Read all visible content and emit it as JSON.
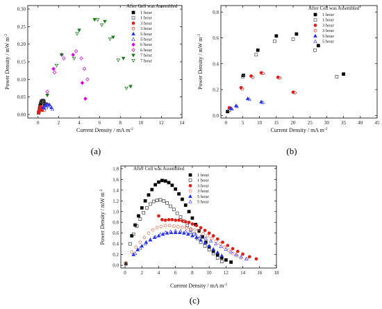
{
  "chart_data": [
    {
      "type": "scatter",
      "panel_label": "(a)",
      "xlabel": "Current Density / mA m",
      "xlabel_sup": "-2",
      "ylabel": "Power Density / mW m",
      "ylabel_sup": "-2",
      "xlim": [
        -1,
        14
      ],
      "ylim": [
        -0.01,
        0.31
      ],
      "xticks": [
        "0",
        "2",
        "4",
        "6",
        "8",
        "10",
        "12",
        "14"
      ],
      "yticks": [
        "0.00",
        "0.05",
        "0.10",
        "0.15",
        "0.20",
        "0.25",
        "0.30"
      ],
      "xtick_values": [
        0,
        2,
        4,
        6,
        8,
        10,
        12,
        14
      ],
      "ytick_values": [
        0,
        0.05,
        0.1,
        0.15,
        0.2,
        0.25,
        0.3
      ],
      "legend_title": "After Cell was Assembled",
      "legend_position": "top-right",
      "series": [
        {
          "name": "1 hour",
          "marker": "square",
          "filled": true,
          "color": "#000000",
          "x": [
            0.05,
            0.1,
            0.15,
            0.2,
            0.25,
            0.3,
            0.35,
            0.45,
            0.55,
            0.65
          ],
          "y": [
            0.005,
            0.01,
            0.018,
            0.025,
            0.03,
            0.035,
            0.038,
            0.04,
            0.038,
            0.03
          ]
        },
        {
          "name": "1 hour",
          "marker": "square",
          "filled": false,
          "color": "#555555",
          "x": [
            0.1,
            0.2,
            0.3,
            0.4,
            0.5,
            0.6,
            0.7,
            0.8
          ],
          "y": [
            0.01,
            0.02,
            0.03,
            0.037,
            0.04,
            0.035,
            0.028,
            0.02
          ]
        },
        {
          "name": "3 hour",
          "marker": "circle",
          "filled": true,
          "color": "#e0201b",
          "x": [
            0.05,
            0.1,
            0.15,
            0.2,
            0.25,
            0.3,
            0.35,
            0.4
          ],
          "y": [
            0.005,
            0.01,
            0.015,
            0.02,
            0.022,
            0.02,
            0.017,
            0.012
          ]
        },
        {
          "name": "3 hour",
          "marker": "circle",
          "filled": false,
          "color": "#e0201b",
          "x": [
            0.1,
            0.2,
            0.3,
            0.4,
            0.5,
            0.6
          ],
          "y": [
            0.008,
            0.015,
            0.02,
            0.022,
            0.018,
            0.012
          ]
        },
        {
          "name": "5 hour",
          "marker": "triangle",
          "filled": true,
          "color": "#1f2ee0",
          "x": [
            0.5,
            0.7,
            0.9,
            1.1,
            1.3
          ],
          "y": [
            0.02,
            0.026,
            0.03,
            0.028,
            0.02
          ]
        },
        {
          "name": "5 hour",
          "marker": "triangle",
          "filled": false,
          "color": "#4d4dff",
          "x": [
            0.6,
            0.8,
            1.0,
            1.2,
            1.4
          ],
          "y": [
            0.018,
            0.024,
            0.027,
            0.024,
            0.015
          ]
        },
        {
          "name": "6 hour",
          "marker": "diamond",
          "filled": true,
          "color": "#e000e0",
          "x": [
            1.5,
            2.3,
            3.4,
            4.3,
            4.6
          ],
          "y": [
            0.13,
            0.17,
            0.17,
            0.09,
            0.045
          ]
        },
        {
          "name": "6 hour",
          "marker": "diamond",
          "filled": false,
          "color": "#e000e0",
          "x": [
            1.6,
            2.5,
            3.7,
            4.2,
            4.5,
            4.8,
            0.9
          ],
          "y": [
            0.12,
            0.16,
            0.18,
            0.16,
            0.13,
            0.1,
            0.065
          ]
        },
        {
          "name": "7 hour",
          "marker": "triangle-down",
          "filled": true,
          "color": "#1e7a1e",
          "x": [
            0.9,
            2.3,
            4.0,
            5.5,
            6.5,
            7.3,
            8.3,
            9.0
          ],
          "y": [
            0.055,
            0.17,
            0.24,
            0.27,
            0.265,
            0.22,
            0.16,
            0.08
          ]
        },
        {
          "name": "7 hour",
          "marker": "triangle-down",
          "filled": false,
          "color": "#1e7a1e",
          "x": [
            1.8,
            3.5,
            3.8,
            5.8,
            6.2,
            7.0,
            7.8,
            8.6
          ],
          "y": [
            0.14,
            0.16,
            0.23,
            0.27,
            0.255,
            0.215,
            0.155,
            0.075
          ]
        }
      ]
    },
    {
      "type": "scatter",
      "panel_label": "(b)",
      "xlabel": "Current Density / mA m",
      "xlabel_sup": "-2",
      "ylabel": "Power Density / mW m",
      "ylabel_sup": "-2",
      "xlim": [
        -1.5,
        45
      ],
      "ylim": [
        -0.02,
        0.85
      ],
      "xticks": [
        "0",
        "5",
        "10",
        "15",
        "20",
        "25",
        "30",
        "35",
        "40",
        "45"
      ],
      "yticks": [
        "0.0",
        "0.2",
        "0.4",
        "0.6",
        "0.8"
      ],
      "xtick_values": [
        0,
        5,
        10,
        15,
        20,
        25,
        30,
        35,
        40,
        45
      ],
      "ytick_values": [
        0,
        0.2,
        0.4,
        0.6,
        0.8
      ],
      "legend_title": "After Cell was Assembled",
      "legend_position": "top-right",
      "series": [
        {
          "name": "1 hour",
          "marker": "square",
          "filled": true,
          "color": "#000000",
          "x": [
            0.5,
            5.2,
            9.5,
            15.0,
            21.0,
            27.5,
            35.0
          ],
          "y": [
            0.03,
            0.31,
            0.505,
            0.615,
            0.63,
            0.54,
            0.32
          ]
        },
        {
          "name": "1 hour",
          "marker": "square",
          "filled": false,
          "color": "#555555",
          "x": [
            1.0,
            5.0,
            9.0,
            14.5,
            20.0,
            26.5,
            33.0
          ],
          "y": [
            0.04,
            0.3,
            0.47,
            0.575,
            0.59,
            0.505,
            0.3
          ]
        },
        {
          "name": "3 hour",
          "marker": "circle",
          "filled": true,
          "color": "#e0201b",
          "x": [
            1.0,
            4.5,
            7.5,
            10.5,
            15.5,
            20.0
          ],
          "y": [
            0.06,
            0.215,
            0.305,
            0.33,
            0.295,
            0.18
          ]
        },
        {
          "name": "3 hour",
          "marker": "circle",
          "filled": false,
          "color": "#e0201b",
          "x": [
            1.3,
            4.8,
            8.0,
            11.0,
            16.0,
            20.5
          ],
          "y": [
            0.055,
            0.205,
            0.295,
            0.325,
            0.29,
            0.175
          ]
        },
        {
          "name": "5 hour",
          "marker": "triangle",
          "filled": true,
          "color": "#1f2ee0",
          "x": [
            1.5,
            3.0,
            6.5,
            10.5
          ],
          "y": [
            0.055,
            0.075,
            0.13,
            0.105
          ]
        },
        {
          "name": "5 hour",
          "marker": "triangle",
          "filled": false,
          "color": "#4d4dff",
          "x": [
            1.8,
            3.3,
            7.0,
            11.0
          ],
          "y": [
            0.05,
            0.07,
            0.125,
            0.1
          ]
        }
      ]
    },
    {
      "type": "scatter",
      "panel_label": "(c)",
      "xlabel": "Current Density / mA m",
      "xlabel_sup": "-2",
      "ylabel": "Power Density / mW m",
      "ylabel_sup": "-2",
      "xlim": [
        -0.5,
        18
      ],
      "ylim": [
        -0.05,
        1.85
      ],
      "xticks": [
        "0",
        "2",
        "4",
        "6",
        "8",
        "10",
        "12",
        "14",
        "16",
        "18"
      ],
      "yticks": [
        "0.0",
        "0.2",
        "0.4",
        "0.6",
        "0.8",
        "1.0",
        "1.2",
        "1.4",
        "1.6",
        "1.8"
      ],
      "xtick_values": [
        0,
        2,
        4,
        6,
        8,
        10,
        12,
        14,
        16,
        18
      ],
      "ytick_values": [
        0,
        0.2,
        0.4,
        0.6,
        0.8,
        1.0,
        1.2,
        1.4,
        1.6,
        1.8
      ],
      "legend_title": "After Cell was Assembled",
      "legend_position": "top-left",
      "series": [
        {
          "name": "1 hour",
          "marker": "square",
          "filled": true,
          "color": "#000000",
          "x": [
            0.1,
            0.8,
            1.2,
            1.6,
            2.0,
            2.4,
            2.8,
            3.2,
            3.6,
            4.0,
            4.4,
            4.8,
            5.2,
            5.6,
            6.0,
            6.4,
            6.8,
            7.2,
            7.6,
            8.0,
            8.4,
            8.8,
            9.2,
            9.6,
            10.0,
            10.5,
            11.0,
            11.5,
            12.0,
            12.6
          ],
          "y": [
            0.03,
            0.55,
            0.75,
            0.92,
            1.07,
            1.2,
            1.31,
            1.41,
            1.5,
            1.55,
            1.58,
            1.57,
            1.54,
            1.49,
            1.42,
            1.33,
            1.23,
            1.12,
            1.0,
            0.88,
            0.76,
            0.64,
            0.53,
            0.43,
            0.34,
            0.26,
            0.19,
            0.14,
            0.1,
            0.06
          ]
        },
        {
          "name": "1 hour",
          "marker": "square",
          "filled": false,
          "color": "#444444",
          "x": [
            0.1,
            0.6,
            1.0,
            1.4,
            1.8,
            2.2,
            2.6,
            3.0,
            3.4,
            3.8,
            4.2,
            4.6,
            5.0,
            5.4,
            5.8,
            6.2,
            6.6,
            7.0,
            7.4,
            7.8,
            8.2,
            8.6,
            9.0,
            9.5,
            10.0,
            10.5,
            11.0,
            11.5
          ],
          "y": [
            0.03,
            0.4,
            0.58,
            0.73,
            0.86,
            0.98,
            1.07,
            1.14,
            1.19,
            1.21,
            1.22,
            1.2,
            1.16,
            1.1,
            1.04,
            0.97,
            0.9,
            0.82,
            0.74,
            0.66,
            0.58,
            0.5,
            0.43,
            0.36,
            0.29,
            0.22,
            0.14,
            0.07
          ]
        },
        {
          "name": "3 hour",
          "marker": "circle",
          "filled": true,
          "color": "#e0201b",
          "x": [
            4.0,
            4.4,
            4.8,
            5.2,
            5.6,
            6.0,
            6.4,
            6.8,
            7.2,
            7.6,
            8.0,
            8.5,
            9.0,
            9.5,
            10.0,
            10.5,
            11.0,
            11.6,
            12.2,
            12.8,
            13.4,
            14.0,
            14.8,
            15.6
          ],
          "y": [
            0.92,
            0.85,
            0.84,
            0.85,
            0.85,
            0.84,
            0.84,
            0.83,
            0.81,
            0.8,
            0.77,
            0.74,
            0.7,
            0.65,
            0.6,
            0.55,
            0.49,
            0.43,
            0.37,
            0.31,
            0.26,
            0.21,
            0.16,
            0.12
          ]
        },
        {
          "name": "3 hour",
          "marker": "circle",
          "filled": false,
          "color": "#e8705a",
          "x": [
            0.1,
            0.8,
            1.3,
            1.8,
            2.3,
            2.8,
            3.3,
            3.8,
            4.3,
            4.8,
            5.3,
            5.8,
            6.3,
            6.8,
            7.3,
            7.8,
            8.3,
            8.8,
            9.3,
            9.8,
            10.3,
            10.8,
            11.3,
            11.8,
            12.3,
            12.8,
            13.3,
            13.8,
            14.5
          ],
          "y": [
            0.05,
            0.25,
            0.34,
            0.43,
            0.52,
            0.6,
            0.66,
            0.7,
            0.72,
            0.74,
            0.74,
            0.73,
            0.72,
            0.71,
            0.7,
            0.68,
            0.66,
            0.63,
            0.59,
            0.55,
            0.5,
            0.45,
            0.4,
            0.34,
            0.28,
            0.22,
            0.18,
            0.14,
            0.12
          ]
        },
        {
          "name": "5 hour",
          "marker": "triangle",
          "filled": true,
          "color": "#1f2ee0",
          "x": [
            1.0,
            1.5,
            2.0,
            2.5,
            3.0,
            3.5,
            4.0,
            4.5,
            5.0,
            5.5,
            6.0,
            6.5,
            7.0,
            7.5,
            8.0,
            8.5,
            9.0,
            9.5,
            10.0,
            10.5,
            11.0,
            11.5
          ],
          "y": [
            0.2,
            0.29,
            0.36,
            0.43,
            0.48,
            0.52,
            0.55,
            0.58,
            0.6,
            0.61,
            0.61,
            0.61,
            0.6,
            0.58,
            0.55,
            0.52,
            0.47,
            0.42,
            0.36,
            0.3,
            0.24,
            0.18
          ]
        },
        {
          "name": "5 hour",
          "marker": "triangle",
          "filled": false,
          "color": "#4d4dff",
          "x": [
            1.2,
            1.8,
            2.4,
            3.0,
            3.6,
            4.2,
            4.8,
            5.4,
            6.0,
            6.6,
            7.2,
            7.8,
            8.4,
            9.0,
            9.6,
            10.2,
            10.8,
            11.4,
            12.0,
            12.6,
            13.2,
            13.8,
            14.4
          ],
          "y": [
            0.22,
            0.32,
            0.4,
            0.47,
            0.53,
            0.58,
            0.61,
            0.63,
            0.64,
            0.64,
            0.63,
            0.61,
            0.58,
            0.54,
            0.5,
            0.45,
            0.4,
            0.35,
            0.3,
            0.25,
            0.2,
            0.16,
            0.12
          ]
        }
      ]
    }
  ]
}
